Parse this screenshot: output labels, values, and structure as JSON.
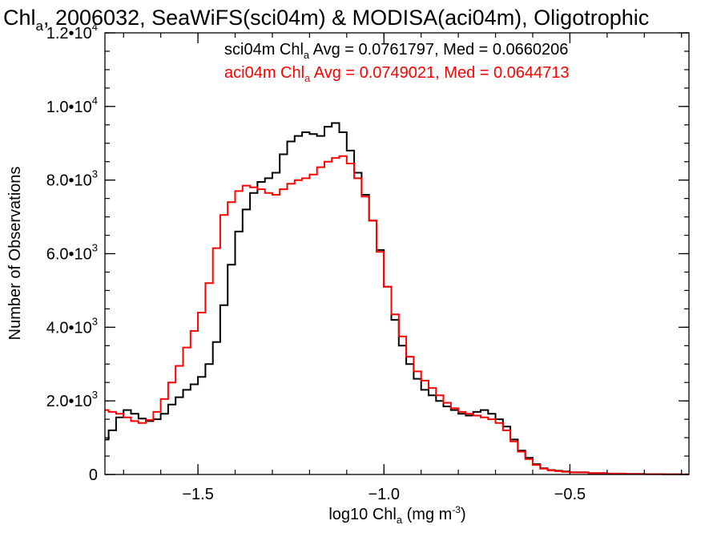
{
  "chart_data": {
    "type": "line",
    "title": {
      "main": "Chl",
      "sub": "a",
      "rest": ", 2006032, SeaWiFS(sci04m) & MODISA(aci04m), Oligotrophic"
    },
    "xlabel": {
      "main": "log10 Chl",
      "sub": "a",
      "units_open": " (mg m",
      "units_exp": "-3",
      "units_close": ")"
    },
    "ylabel": "Number of Observations",
    "xlim": [
      -1.75,
      -0.18
    ],
    "ylim": [
      0,
      12000
    ],
    "x_ticks": [
      {
        "value": -1.5,
        "label": "−1.5"
      },
      {
        "value": -1.0,
        "label": "−1.0"
      },
      {
        "value": -0.5,
        "label": "−0.5"
      }
    ],
    "x_minor_step": 0.1,
    "y_ticks": [
      {
        "value": 0,
        "mantissa": "0",
        "exp": ""
      },
      {
        "value": 2000,
        "mantissa": "2.0•10",
        "exp": "3"
      },
      {
        "value": 4000,
        "mantissa": "4.0•10",
        "exp": "3"
      },
      {
        "value": 6000,
        "mantissa": "6.0•10",
        "exp": "3"
      },
      {
        "value": 8000,
        "mantissa": "8.0•10",
        "exp": "3"
      },
      {
        "value": 10000,
        "mantissa": "1.0•10",
        "exp": "4"
      },
      {
        "value": 12000,
        "mantissa": "1.2•10",
        "exp": "4"
      }
    ],
    "y_minor_step": 500,
    "annotations": [
      {
        "pre": "sci04m Chl",
        "sub": "a",
        "post": " Avg = 0.0761797, Med = 0.0660206",
        "color": "#000000"
      },
      {
        "pre": "aci04m Chl",
        "sub": "a",
        "post": " Avg = 0.0749021, Med = 0.0644713",
        "color": "#ff0000"
      }
    ],
    "series": [
      {
        "color": "#000000",
        "x": [
          -1.75,
          -1.74,
          -1.72,
          -1.7,
          -1.68,
          -1.66,
          -1.64,
          -1.62,
          -1.6,
          -1.58,
          -1.56,
          -1.54,
          -1.52,
          -1.5,
          -1.48,
          -1.46,
          -1.44,
          -1.42,
          -1.4,
          -1.38,
          -1.36,
          -1.34,
          -1.32,
          -1.3,
          -1.28,
          -1.26,
          -1.24,
          -1.22,
          -1.2,
          -1.18,
          -1.16,
          -1.14,
          -1.12,
          -1.1,
          -1.08,
          -1.06,
          -1.04,
          -1.02,
          -1.0,
          -0.98,
          -0.96,
          -0.94,
          -0.92,
          -0.9,
          -0.88,
          -0.86,
          -0.84,
          -0.82,
          -0.8,
          -0.78,
          -0.76,
          -0.74,
          -0.72,
          -0.7,
          -0.68,
          -0.66,
          -0.64,
          -0.62,
          -0.6,
          -0.58,
          -0.56,
          -0.54,
          -0.52,
          -0.5,
          -0.45,
          -0.4,
          -0.35,
          -0.3,
          -0.25,
          -0.2,
          -0.18
        ],
        "y": [
          950,
          1200,
          1550,
          1750,
          1650,
          1520,
          1450,
          1500,
          1650,
          1900,
          2100,
          2300,
          2450,
          2650,
          3000,
          3600,
          4600,
          5700,
          6600,
          7200,
          7650,
          7950,
          8050,
          8200,
          8700,
          9050,
          9200,
          9300,
          9250,
          9200,
          9450,
          9550,
          9300,
          8800,
          8200,
          7600,
          6900,
          6100,
          5100,
          4200,
          3500,
          3000,
          2600,
          2300,
          2150,
          2000,
          1850,
          1750,
          1650,
          1600,
          1700,
          1750,
          1650,
          1500,
          1300,
          950,
          650,
          450,
          280,
          170,
          120,
          100,
          80,
          60,
          40,
          25,
          15,
          10,
          5,
          3,
          2
        ]
      },
      {
        "color": "#ff0000",
        "x": [
          -1.75,
          -1.74,
          -1.72,
          -1.7,
          -1.68,
          -1.66,
          -1.64,
          -1.62,
          -1.6,
          -1.58,
          -1.56,
          -1.54,
          -1.52,
          -1.5,
          -1.48,
          -1.46,
          -1.44,
          -1.42,
          -1.4,
          -1.38,
          -1.36,
          -1.34,
          -1.32,
          -1.3,
          -1.28,
          -1.26,
          -1.24,
          -1.22,
          -1.2,
          -1.18,
          -1.16,
          -1.14,
          -1.12,
          -1.1,
          -1.08,
          -1.06,
          -1.04,
          -1.02,
          -1.0,
          -0.98,
          -0.96,
          -0.94,
          -0.92,
          -0.9,
          -0.88,
          -0.86,
          -0.84,
          -0.82,
          -0.8,
          -0.78,
          -0.76,
          -0.74,
          -0.72,
          -0.7,
          -0.68,
          -0.66,
          -0.64,
          -0.62,
          -0.6,
          -0.58,
          -0.56,
          -0.54,
          -0.52,
          -0.5,
          -0.45,
          -0.4,
          -0.35,
          -0.3,
          -0.25,
          -0.2,
          -0.18
        ],
        "y": [
          1750,
          1700,
          1650,
          1550,
          1450,
          1400,
          1480,
          1700,
          2050,
          2500,
          2950,
          3450,
          3900,
          4400,
          5200,
          6150,
          7050,
          7400,
          7700,
          7850,
          7800,
          7750,
          7650,
          7600,
          7750,
          7900,
          8000,
          8050,
          8150,
          8350,
          8500,
          8600,
          8650,
          8450,
          8050,
          7550,
          6900,
          6050,
          5100,
          4350,
          3750,
          3200,
          2800,
          2550,
          2350,
          2150,
          1950,
          1800,
          1700,
          1650,
          1600,
          1550,
          1500,
          1400,
          1200,
          900,
          620,
          420,
          260,
          160,
          110,
          90,
          70,
          55,
          35,
          22,
          14,
          9,
          5,
          3,
          2
        ]
      }
    ]
  }
}
